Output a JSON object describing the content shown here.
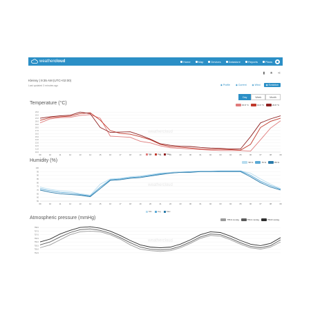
{
  "app": {
    "brand_light": "weather",
    "brand_bold": "cloud"
  },
  "nav": [
    {
      "label": "Home",
      "icon": "home-icon"
    },
    {
      "label": "Map",
      "icon": "map-icon"
    },
    {
      "label": "Devices",
      "icon": "devices-icon"
    },
    {
      "label": "Datastore",
      "icon": "database-icon"
    },
    {
      "label": "Reports",
      "icon": "reports-icon"
    },
    {
      "label": "Plans",
      "icon": "plans-icon"
    }
  ],
  "station": {
    "name": "Kleinsy | 9:35 AM (UTC+02:00)",
    "updated": "Last updated 3 minutes ago"
  },
  "tabs": [
    "Profile",
    "Current",
    "Wind",
    "Evolution"
  ],
  "active_tab": "Evolution",
  "range": [
    "Day",
    "Week",
    "Month"
  ],
  "active_range": "Day",
  "colors": {
    "accent": "#2b8fc6"
  },
  "chart_data": [
    {
      "type": "line",
      "title": "Temperature (°C)",
      "x": [
        "09",
        "10",
        "11",
        "12",
        "13",
        "14",
        "15",
        "16",
        "17",
        "18",
        "19",
        "20",
        "21",
        "22",
        "23",
        "00",
        "01",
        "02",
        "03",
        "04",
        "05",
        "06",
        "07",
        "08",
        "09"
      ],
      "yticks": [
        "23.0",
        "22.0",
        "21.0",
        "20.0",
        "19.0",
        "18.0",
        "17.0",
        "16.0",
        "15.0",
        "14.0",
        "13.0",
        "12.0",
        "11.0",
        "10.0"
      ],
      "ylim": [
        10,
        23.5
      ],
      "series": [
        {
          "name": "Min",
          "color": "#e07b7b",
          "values": [
            19.5,
            20.8,
            21.2,
            21.3,
            21.9,
            22.2,
            21.0,
            15.2,
            15.0,
            14.8,
            13.5,
            13.0,
            12.0,
            11.4,
            11.2,
            11.0,
            10.8,
            10.6,
            10.5,
            10.5,
            10.5,
            10.3,
            14.0,
            17.8,
            20.2
          ]
        },
        {
          "name": "Avg",
          "color": "#c0392b",
          "values": [
            20.3,
            21.2,
            21.5,
            21.7,
            22.5,
            22.8,
            20.4,
            17.0,
            16.1,
            15.8,
            15.0,
            14.0,
            12.5,
            11.8,
            11.6,
            11.3,
            11.0,
            10.9,
            10.9,
            10.8,
            10.6,
            12.5,
            18.0,
            20.0,
            21.0
          ]
        },
        {
          "name": "Max",
          "color": "#8e1f1f",
          "values": [
            21.0,
            21.5,
            21.8,
            22.0,
            23.0,
            22.5,
            18.0,
            16.4,
            16.5,
            16.6,
            15.5,
            14.2,
            12.7,
            12.2,
            11.9,
            11.8,
            11.5,
            11.3,
            11.2,
            11.0,
            11.0,
            15.0,
            19.5,
            20.8,
            21.8
          ]
        }
      ],
      "legend_values": [
        "15.8 °C",
        "19.6 °C",
        "20.8 °C"
      ]
    },
    {
      "type": "line",
      "title": "Humidity (%)",
      "x": [
        "09",
        "10",
        "11",
        "12",
        "13",
        "14",
        "15",
        "16",
        "17",
        "18",
        "19",
        "20",
        "21",
        "22",
        "23",
        "00",
        "01",
        "02",
        "03",
        "04",
        "05",
        "06",
        "07",
        "08",
        "09"
      ],
      "yticks": [
        "100",
        "95",
        "90",
        "85",
        "80",
        "75",
        "70",
        "65",
        "60",
        "55"
      ],
      "ylim": [
        55,
        100
      ],
      "series": [
        {
          "name": "Min",
          "color": "#b8dcef",
          "values": [
            74,
            71,
            69,
            68,
            65,
            63,
            78,
            85,
            86,
            88,
            89,
            91,
            93,
            94,
            95,
            95,
            96,
            96,
            96,
            96,
            96,
            93,
            85,
            78,
            72
          ]
        },
        {
          "name": "Avg",
          "color": "#5aa9d6",
          "values": [
            72,
            69,
            67,
            66,
            64,
            62,
            74,
            84,
            85,
            87,
            88,
            90,
            92,
            93,
            94,
            95,
            95,
            95,
            96,
            96,
            96,
            90,
            82,
            76,
            71
          ]
        },
        {
          "name": "Max",
          "color": "#2a7aa9",
          "values": [
            70,
            67,
            65,
            64,
            63,
            61,
            72,
            83,
            84,
            86,
            87,
            89,
            91,
            93,
            94,
            94,
            95,
            95,
            95,
            95,
            95,
            88,
            80,
            74,
            70
          ]
        }
      ],
      "legend_values": [
        "58 %",
        "76 %",
        "86 %"
      ]
    },
    {
      "type": "line",
      "title": "Atmospheric pressure (mmHg)",
      "yticks": [
        "758.0",
        "757.5",
        "757.0",
        "756.5",
        "756.0",
        "755.5",
        "755.0",
        "754.5"
      ],
      "ylim": [
        754.3,
        758.2
      ],
      "series": [
        {
          "name": "Min",
          "color": "#9a9a9a",
          "values": [
            755.2,
            755.6,
            756.3,
            757.0,
            757.4,
            757.5,
            757.4,
            757.0,
            756.4,
            755.6,
            755.0,
            754.8,
            754.7,
            754.8,
            755.2,
            755.8,
            756.5,
            756.9,
            756.8,
            756.3,
            755.7,
            755.2,
            755.0,
            755.3,
            756.0
          ]
        },
        {
          "name": "Avg",
          "color": "#5b5b5b",
          "values": [
            755.6,
            756.0,
            756.7,
            757.3,
            757.7,
            757.8,
            757.6,
            757.2,
            756.6,
            755.9,
            755.3,
            755.0,
            754.9,
            755.0,
            755.4,
            756.0,
            756.7,
            757.1,
            757.0,
            756.5,
            755.9,
            755.4,
            755.2,
            755.5,
            756.3
          ]
        },
        {
          "name": "Max",
          "color": "#2e2e2e",
          "values": [
            756.0,
            756.4,
            757.1,
            757.6,
            758.0,
            758.1,
            757.9,
            757.5,
            756.9,
            756.2,
            755.6,
            755.3,
            755.2,
            755.3,
            755.7,
            756.3,
            757.0,
            757.4,
            757.3,
            756.8,
            756.2,
            755.7,
            755.5,
            755.8,
            756.6
          ]
        }
      ],
      "legend_values": [
        "755.9 mmHg",
        "756.3 mmHg",
        "756.8 mmHg"
      ]
    }
  ]
}
